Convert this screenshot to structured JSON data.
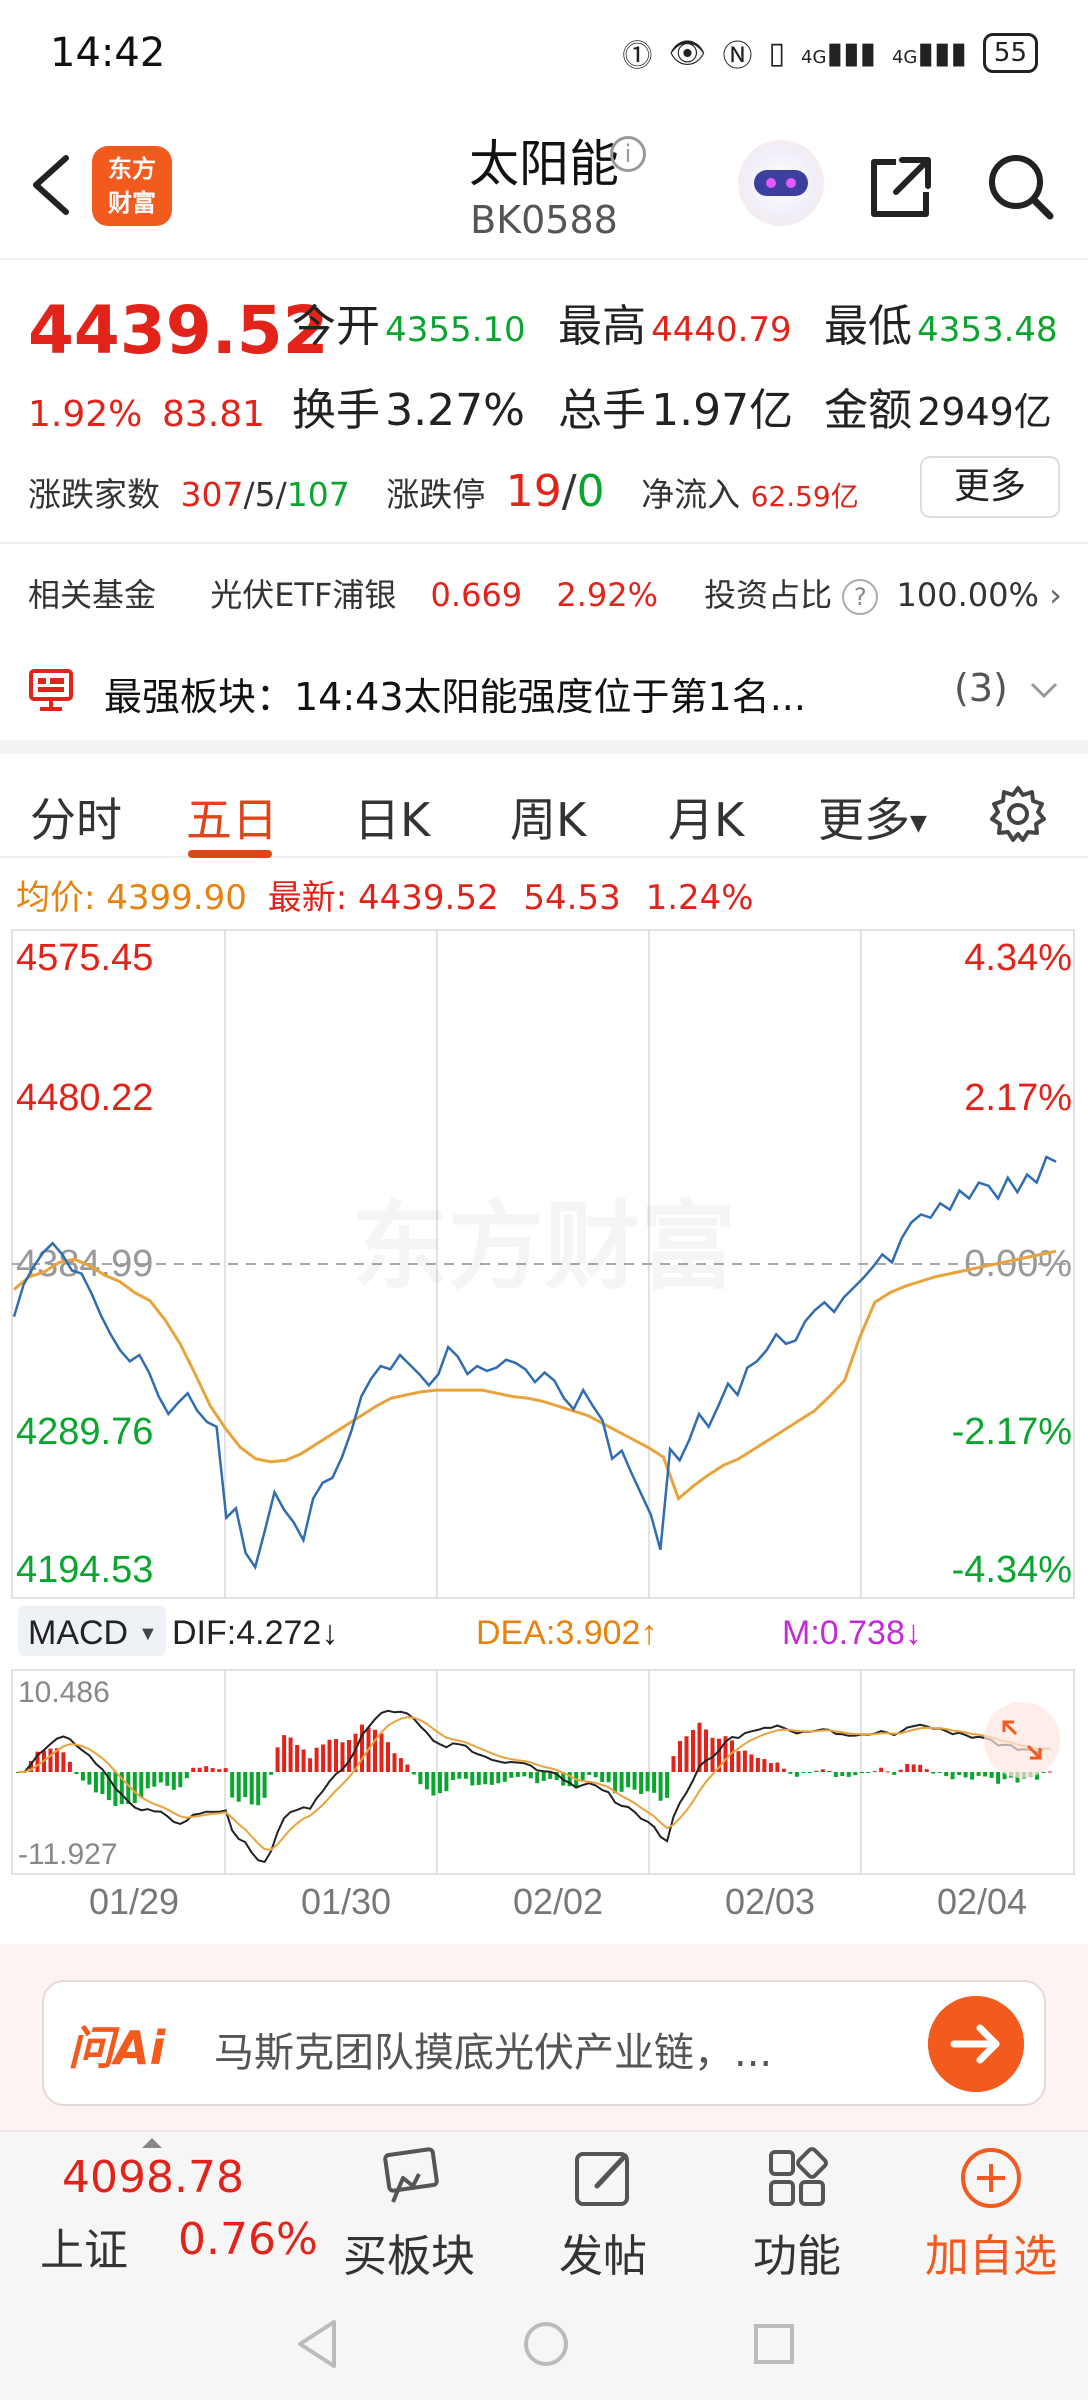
{
  "status": {
    "time": "14:42",
    "net1": "4G",
    "net2": "4G",
    "battery": "55"
  },
  "header": {
    "logo_line1": "东方",
    "logo_line2": "财富",
    "name": "太阳能",
    "code": "BK0588",
    "info_glyph": "i"
  },
  "quote": {
    "price": "4439.52",
    "change_pct": "1.92%",
    "change_val": "83.81",
    "open_label": "今开",
    "open": "4355.10",
    "high_label": "最高",
    "high": "4440.79",
    "low_label": "最低",
    "low": "4353.48",
    "turnover_label": "换手",
    "turnover": "3.27%",
    "volume_label": "总手",
    "volume": "1.97亿",
    "amount_label": "金额",
    "amount": "2949亿",
    "breadth_label": "涨跌家数",
    "breadth_up": "307",
    "breadth_flat": "5",
    "breadth_down": "107",
    "slash": "/",
    "limit_label": "涨跌停",
    "limit_up": "19",
    "limit_down": "0",
    "inflow_label": "净流入",
    "inflow": "62.59亿",
    "more_label": "更多"
  },
  "fund": {
    "label": "相关基金",
    "name": "光伏ETF浦银",
    "value": "0.669",
    "pct": "2.92%",
    "ratio_label": "投资占比",
    "q": "?",
    "ratio": "100.00%",
    "chev": "›"
  },
  "board": {
    "text": "最强板块：14:43太阳能强度位于第1名...",
    "count": "(3)"
  },
  "tabs": [
    {
      "label": "分时"
    },
    {
      "label": "五日"
    },
    {
      "label": "日K"
    },
    {
      "label": "周K"
    },
    {
      "label": "月K"
    },
    {
      "label": "更多"
    }
  ],
  "avg_row": {
    "avg_label": "均价:",
    "avg": "4399.90",
    "latest_label": "最新:",
    "latest": "4439.52",
    "change": "54.53",
    "pct": "1.24%"
  },
  "chart_data": {
    "type": "line",
    "x_tick_labels": [
      "01/29",
      "01/30",
      "02/02",
      "02/03",
      "02/04"
    ],
    "y_tick_labels": [
      "4575.45",
      "4480.22",
      "4384.99",
      "4289.76",
      "4194.53"
    ],
    "y_pct_labels": [
      "4.34%",
      "2.17%",
      "0.00%",
      "-2.17%",
      "-4.34%"
    ],
    "ylim": [
      4194.53,
      4575.45
    ],
    "baseline": 4384.99,
    "watermark": "东方财富",
    "series": [
      {
        "values": [
          4352,
          4372,
          4383,
          4392,
          4398,
          4391,
          4381,
          4379,
          4367,
          4353,
          4341,
          4331,
          4324,
          4328,
          4317,
          4302,
          4291,
          4298,
          4304,
          4293,
          4286,
          4283,
          4226,
          4232,
          4204,
          4195,
          4218,
          4242,
          4231,
          4223,
          4212,
          4238,
          4248,
          4251,
          4264,
          4281,
          4302,
          4313,
          4321,
          4319,
          4328,
          4322,
          4316,
          4309,
          4316,
          4333,
          4327,
          4316,
          4321,
          4318,
          4320,
          4325,
          4323,
          4319,
          4311,
          4317,
          4312,
          4301,
          4294,
          4306,
          4296,
          4287,
          4263,
          4268,
          4254,
          4241,
          4228,
          4206,
          4269,
          4262,
          4275,
          4291,
          4283,
          4296,
          4310,
          4303,
          4320,
          4324,
          4331,
          4341,
          4335,
          4337,
          4349,
          4356,
          4361,
          4355,
          4364,
          4370,
          4376,
          4383,
          4391,
          4386,
          4401,
          4411,
          4416,
          4414,
          4423,
          4419,
          4431,
          4426,
          4436,
          4434,
          4426,
          4439,
          4430,
          4441,
          4436,
          4452,
          4449
        ]
      },
      {
        "values": [
          4369,
          4377,
          4380,
          4386,
          4388,
          4384,
          4378,
          4374,
          4367,
          4362,
          4350,
          4335,
          4316,
          4296,
          4282,
          4270,
          4263,
          4261,
          4262,
          4266,
          4272,
          4278,
          4284,
          4290,
          4296,
          4301,
          4303,
          4305,
          4306,
          4306,
          4306,
          4306,
          4304,
          4302,
          4301,
          4299,
          4296,
          4293,
          4290,
          4285,
          4280,
          4275,
          4270,
          4264,
          4238,
          4246,
          4253,
          4259,
          4263,
          4269,
          4275,
          4281,
          4287,
          4293,
          4302,
          4312,
          4339,
          4361,
          4367,
          4371,
          4374,
          4377,
          4379,
          4381,
          4383,
          4385,
          4387,
          4389,
          4391,
          4393
        ]
      }
    ],
    "macd": {
      "label": "MACD",
      "dif_label": "DIF:",
      "dif": "4.272",
      "dif_arrow": "↓",
      "dea_label": "DEA:",
      "dea": "3.902",
      "dea_arrow": "↑",
      "m_label": "M:",
      "m": "0.738",
      "m_arrow": "↓",
      "ymax": "10.486",
      "ymin": "-11.927"
    }
  },
  "ai": {
    "logo": "问Ai",
    "text": "马斯克团队摸底光伏产业链，..."
  },
  "bottom": {
    "index_value": "4098.78",
    "index_name": "上证",
    "index_pct": "0.76%",
    "tools": [
      {
        "label": "买板块"
      },
      {
        "label": "发帖"
      },
      {
        "label": "功能"
      },
      {
        "label": "加自选"
      }
    ]
  },
  "colors": {
    "red": "#e2231a",
    "green": "#0aa52f",
    "orange": "#e8820c",
    "price_line": "#2f6db0",
    "avg_line": "#e8a33c",
    "accent": "#f25a1e"
  }
}
